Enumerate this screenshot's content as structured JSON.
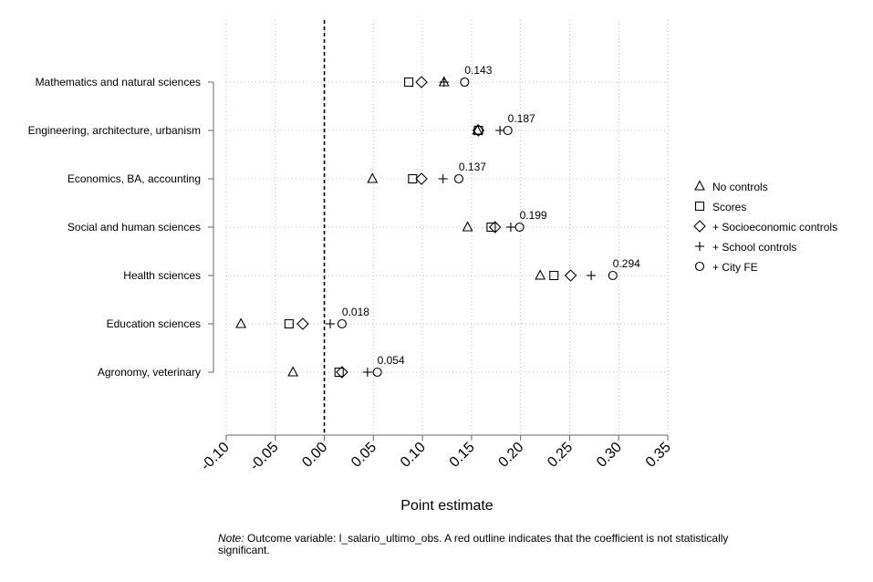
{
  "chart_data": {
    "type": "scatter",
    "orientation": "horizontal",
    "xlabel": "Point estimate",
    "xlim": [
      -0.1,
      0.35
    ],
    "xticks": [
      "-0.10",
      "-0.05",
      "0.00",
      "0.05",
      "0.10",
      "0.15",
      "0.20",
      "0.25",
      "0.30",
      "0.35"
    ],
    "reference_line": 0,
    "grid": true,
    "legend_position": "right",
    "categories": [
      "Mathematics and natural sciences",
      "Engineering, architecture, urbanism",
      "Economics, BA, accounting",
      "Social and human sciences",
      "Health sciences",
      "Education sciences",
      "Agronomy, veterinary"
    ],
    "series": [
      {
        "name": "No controls",
        "marker": "triangle",
        "values": [
          0.122,
          0.156,
          0.049,
          0.146,
          0.22,
          -0.085,
          -0.032
        ]
      },
      {
        "name": "Scores",
        "marker": "square",
        "values": [
          0.086,
          0.157,
          0.09,
          0.17,
          0.234,
          -0.036,
          0.015
        ]
      },
      {
        "name": "+ Socioeconomic controls",
        "marker": "diamond",
        "values": [
          0.099,
          0.157,
          0.099,
          0.174,
          0.251,
          -0.022,
          0.018
        ]
      },
      {
        "name": "+ School controls",
        "marker": "plus",
        "values": [
          0.122,
          0.179,
          0.121,
          0.19,
          0.272,
          0.006,
          0.044
        ]
      },
      {
        "name": "+ City FE",
        "marker": "circle",
        "values": [
          0.143,
          0.187,
          0.137,
          0.199,
          0.294,
          0.018,
          0.054
        ]
      }
    ],
    "data_labels": [
      "0.143",
      "0.187",
      "0.137",
      "0.199",
      "0.294",
      "0.018",
      "0.054"
    ],
    "note_label": "Note:",
    "note_text": "Outcome variable: l_salario_ultimo_obs. A red outline indicates that the coefficient is not statistically significant.",
    "colors": {
      "marker": "#000000",
      "grid": "#bbbbbb",
      "axis": "#666666"
    }
  }
}
